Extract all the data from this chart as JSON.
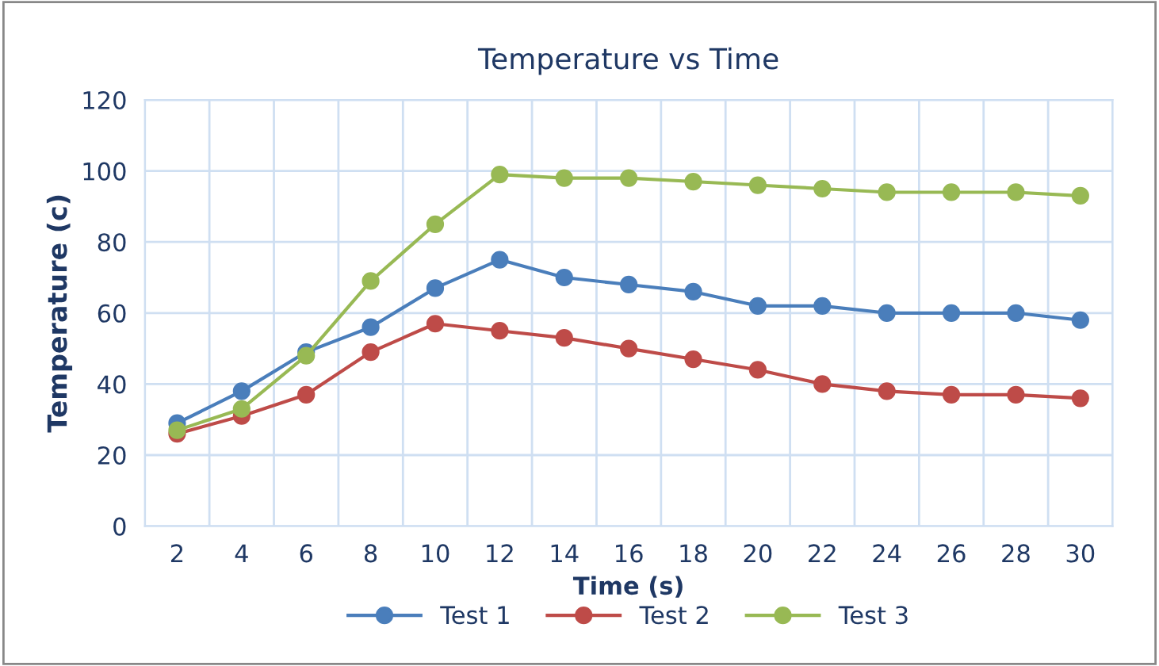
{
  "chart_data": {
    "type": "line",
    "title": "Temperature vs Time",
    "xlabel": "Time (s)",
    "ylabel": "Temperature (c)",
    "categories": [
      "2",
      "4",
      "6",
      "8",
      "10",
      "12",
      "14",
      "16",
      "18",
      "20",
      "22",
      "24",
      "26",
      "28",
      "30"
    ],
    "series": [
      {
        "name": "Test 1",
        "color": "#4a7ebb",
        "values": [
          29,
          38,
          49,
          56,
          67,
          75,
          70,
          68,
          66,
          62,
          62,
          60,
          60,
          60,
          58
        ]
      },
      {
        "name": "Test 2",
        "color": "#be4b48",
        "values": [
          26,
          31,
          37,
          49,
          57,
          55,
          53,
          50,
          47,
          44,
          40,
          38,
          37,
          37,
          36
        ]
      },
      {
        "name": "Test 3",
        "color": "#98b954",
        "values": [
          27,
          33,
          48,
          69,
          85,
          99,
          98,
          98,
          97,
          96,
          95,
          94,
          94,
          94,
          93
        ]
      }
    ],
    "ylim": [
      0,
      120
    ],
    "yticks": [
      0,
      20,
      40,
      60,
      80,
      100,
      120
    ],
    "grid": true,
    "legend": "bottom",
    "marker": "circle",
    "line_style": "solid"
  }
}
